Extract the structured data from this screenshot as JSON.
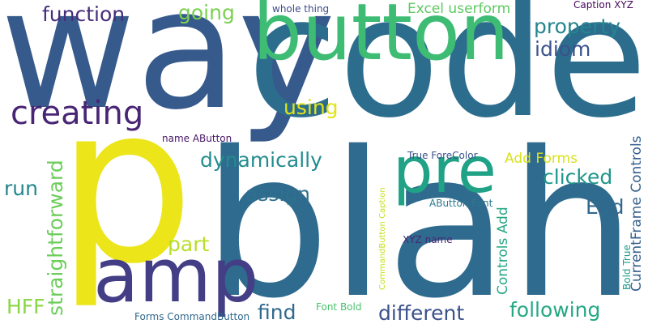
{
  "word_cloud": {
    "background": "#ffffff",
    "words": {
      "code": {
        "text": "code",
        "color": "#2c6d8e"
      },
      "way": {
        "text": "way",
        "color": "#365a8c"
      },
      "blah": {
        "text": "blah",
        "color": "#2f6b8e"
      },
      "p": {
        "text": "p",
        "color": "#ebe51a"
      },
      "button": {
        "text": "button",
        "color": "#3ebc74"
      },
      "amp": {
        "text": "amp",
        "color": "#433e85"
      },
      "pre": {
        "text": "pre",
        "color": "#1fa286"
      },
      "creating": {
        "text": "creating",
        "color": "#482575"
      },
      "function": {
        "text": "function",
        "color": "#472d7b"
      },
      "going": {
        "text": "going",
        "color": "#7ad151"
      },
      "excel": {
        "text": "Excel userform",
        "color": "#5ec962"
      },
      "whole": {
        "text": "whole thing",
        "color": "#3e4a89"
      },
      "caption_xyz": {
        "text": "Caption XYZ",
        "color": "#46085c"
      },
      "property": {
        "text": "property",
        "color": "#25858e"
      },
      "idiom": {
        "text": "idiom",
        "color": "#3b528b"
      },
      "using": {
        "text": "using",
        "color": "#e2e418"
      },
      "name_abutton": {
        "text": "name AButton",
        "color": "#481668"
      },
      "dynamically": {
        "text": "dynamically",
        "color": "#228c8d"
      },
      "true_forecolor": {
        "text": "True ForeColor",
        "color": "#3b518b"
      },
      "add_forms": {
        "text": "Add Forms",
        "color": "#d8e219"
      },
      "clicked": {
        "text": "clicked",
        "color": "#1f968b"
      },
      "assign": {
        "text": "assign",
        "color": "#2d718e"
      },
      "end": {
        "text": "End",
        "color": "#31688e"
      },
      "run": {
        "text": "run",
        "color": "#24868e"
      },
      "abutton_font": {
        "text": "AButton Font",
        "color": "#2a788e"
      },
      "part": {
        "text": "part",
        "color": "#b8de29"
      },
      "xyz_name": {
        "text": "XYZ name",
        "color": "#482677"
      },
      "find": {
        "text": "find",
        "color": "#306a8e"
      },
      "different": {
        "text": "different",
        "color": "#3b528b"
      },
      "following": {
        "text": "following",
        "color": "#25a884"
      },
      "hff": {
        "text": "HFF",
        "color": "#8bd646"
      },
      "font_bold": {
        "text": "Font Bold",
        "color": "#4ac16d"
      },
      "forms_commandbutton": {
        "text": "Forms CommandButton",
        "color": "#31688e"
      },
      "straightforward": {
        "text": "straightforward",
        "color": "#6ccd5a"
      },
      "controls_add": {
        "text": "Controls Add",
        "color": "#26a784"
      },
      "currentframe": {
        "text": "CurrentFrame Controls",
        "color": "#355f8d"
      },
      "commandbutton_caption": {
        "text": "CommandButton Caption",
        "color": "#c8e020"
      },
      "bold_true": {
        "text": "Bold True",
        "color": "#1e9b8a"
      }
    }
  }
}
